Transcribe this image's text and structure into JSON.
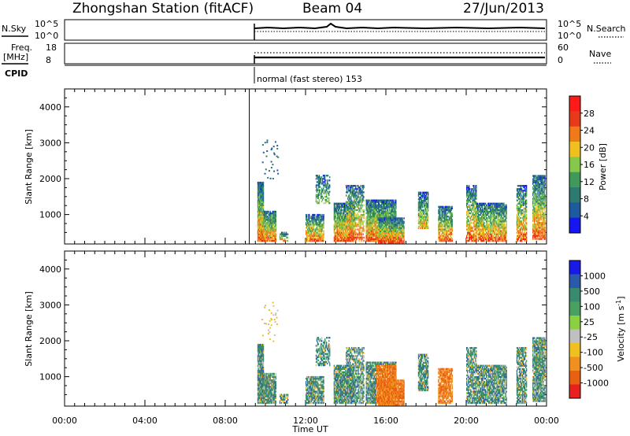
{
  "header": {
    "station": "Zhongshan Station (fitACF)",
    "beam": "Beam 04",
    "date": "27/Jun/2013"
  },
  "panels": {
    "nsky": {
      "label": "N.Sky",
      "ticks": [
        "10^5",
        "10^0"
      ]
    },
    "nsearch": {
      "label": "N.Search",
      "ticks": [
        "10^5",
        "10^0"
      ]
    },
    "freq": {
      "label_1": "Freq.",
      "label_2": "[MHz]",
      "ticks": [
        "18",
        "8"
      ]
    },
    "nave": {
      "label": "Nave",
      "ticks": [
        "60",
        "0"
      ]
    },
    "cpid": {
      "label": "CPID",
      "text": "normal (fast stereo) 153"
    }
  },
  "chart_data": [
    {
      "type": "heatmap",
      "title": "",
      "xlabel": "",
      "ylabel": "Slant Range [km]",
      "xlim": [
        0,
        24
      ],
      "ylim": [
        180,
        4500
      ],
      "y_ticks": [
        "4000",
        "3000",
        "2000",
        "1000"
      ],
      "colorbar": {
        "label": "Power [dB]",
        "ticks": [
          "28",
          "24",
          "20",
          "16",
          "12",
          "8",
          "4"
        ],
        "colors": [
          "#ff1a1a",
          "#e63a1a",
          "#f07a1a",
          "#f0c020",
          "#86c94a",
          "#3f9a5a",
          "#2e7a70",
          "#1e5aa0",
          "#1616f0"
        ]
      },
      "data_start_hour": 9.2
    },
    {
      "type": "heatmap",
      "title": "",
      "xlabel": "Time UT",
      "ylabel": "Slant Range [km]",
      "xlim": [
        0,
        24
      ],
      "ylim": [
        180,
        4500
      ],
      "y_ticks": [
        "4000",
        "3000",
        "2000",
        "1000"
      ],
      "x_ticks": [
        "00:00",
        "04:00",
        "08:00",
        "12:00",
        "16:00",
        "20:00",
        "00:00"
      ],
      "colorbar": {
        "label": "Velocity [m s^-1]",
        "unit_exponent": "-1",
        "ticks": [
          "1000",
          "500",
          "100",
          "25",
          "-25",
          "-100",
          "-500",
          "-1000"
        ],
        "colors": [
          "#1a1ae8",
          "#2a5aaa",
          "#3a8a70",
          "#4aa060",
          "#8ad040",
          "#c0c0c0",
          "#f0c020",
          "#f09020",
          "#e86010",
          "#e82020"
        ]
      },
      "data_start_hour": 9.2
    }
  ]
}
